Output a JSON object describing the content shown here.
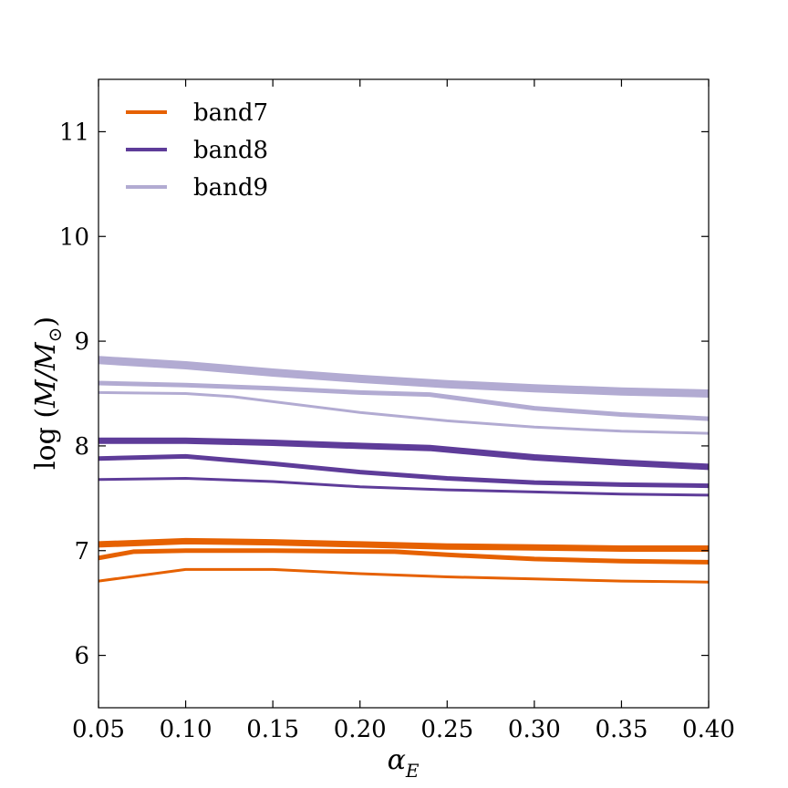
{
  "chart_data": {
    "type": "line",
    "title": "",
    "xlabel": "α_E",
    "ylabel": "log (M/M_⊙)",
    "xlim": [
      0.05,
      0.4
    ],
    "ylim": [
      5.5,
      11.5
    ],
    "x_ticks": [
      "0.05",
      "0.10",
      "0.15",
      "0.20",
      "0.25",
      "0.30",
      "0.35",
      "0.40"
    ],
    "y_ticks": [
      "6",
      "7",
      "8",
      "9",
      "10",
      "11"
    ],
    "grid": false,
    "legend_position": "top-left",
    "legend": [
      {
        "label": "band7",
        "color": "#e66101"
      },
      {
        "label": "band8",
        "color": "#5e3c99"
      },
      {
        "label": "band9",
        "color": "#b2abd2"
      }
    ],
    "series": [
      {
        "group": "band7",
        "color": "#e66101",
        "width": 7,
        "x": [
          0.05,
          0.1,
          0.15,
          0.2,
          0.25,
          0.3,
          0.35,
          0.4
        ],
        "y": [
          7.06,
          7.09,
          7.08,
          7.06,
          7.04,
          7.03,
          7.02,
          7.02
        ]
      },
      {
        "group": "band7",
        "color": "#e66101",
        "width": 5,
        "x": [
          0.05,
          0.07,
          0.1,
          0.15,
          0.22,
          0.25,
          0.3,
          0.35,
          0.4
        ],
        "y": [
          6.93,
          6.99,
          7.0,
          7.0,
          6.99,
          6.96,
          6.92,
          6.9,
          6.89
        ]
      },
      {
        "group": "band7",
        "color": "#e66101",
        "width": 3,
        "x": [
          0.05,
          0.1,
          0.15,
          0.2,
          0.25,
          0.3,
          0.35,
          0.4
        ],
        "y": [
          6.71,
          6.82,
          6.82,
          6.78,
          6.75,
          6.73,
          6.71,
          6.7
        ]
      },
      {
        "group": "band8",
        "color": "#5e3c99",
        "width": 7,
        "x": [
          0.05,
          0.1,
          0.15,
          0.2,
          0.24,
          0.3,
          0.35,
          0.4
        ],
        "y": [
          8.05,
          8.05,
          8.03,
          8.0,
          7.98,
          7.89,
          7.84,
          7.8
        ]
      },
      {
        "group": "band8",
        "color": "#5e3c99",
        "width": 5,
        "x": [
          0.05,
          0.1,
          0.15,
          0.2,
          0.25,
          0.3,
          0.35,
          0.4
        ],
        "y": [
          7.88,
          7.9,
          7.83,
          7.75,
          7.69,
          7.65,
          7.63,
          7.62
        ]
      },
      {
        "group": "band8",
        "color": "#5e3c99",
        "width": 3,
        "x": [
          0.05,
          0.1,
          0.15,
          0.2,
          0.25,
          0.3,
          0.35,
          0.4
        ],
        "y": [
          7.68,
          7.69,
          7.66,
          7.61,
          7.58,
          7.56,
          7.54,
          7.53
        ]
      },
      {
        "group": "band9",
        "color": "#b2abd2",
        "width": 9,
        "x": [
          0.05,
          0.1,
          0.15,
          0.2,
          0.25,
          0.3,
          0.35,
          0.4
        ],
        "y": [
          8.82,
          8.77,
          8.7,
          8.64,
          8.59,
          8.55,
          8.52,
          8.5
        ]
      },
      {
        "group": "band9",
        "color": "#b2abd2",
        "width": 5,
        "x": [
          0.05,
          0.1,
          0.15,
          0.2,
          0.24,
          0.3,
          0.35,
          0.4
        ],
        "y": [
          8.6,
          8.58,
          8.55,
          8.51,
          8.49,
          8.36,
          8.3,
          8.26
        ]
      },
      {
        "group": "band9",
        "color": "#b2abd2",
        "width": 3,
        "x": [
          0.05,
          0.1,
          0.127,
          0.2,
          0.25,
          0.3,
          0.35,
          0.4
        ],
        "y": [
          8.51,
          8.5,
          8.47,
          8.32,
          8.24,
          8.18,
          8.14,
          8.12
        ]
      }
    ]
  }
}
